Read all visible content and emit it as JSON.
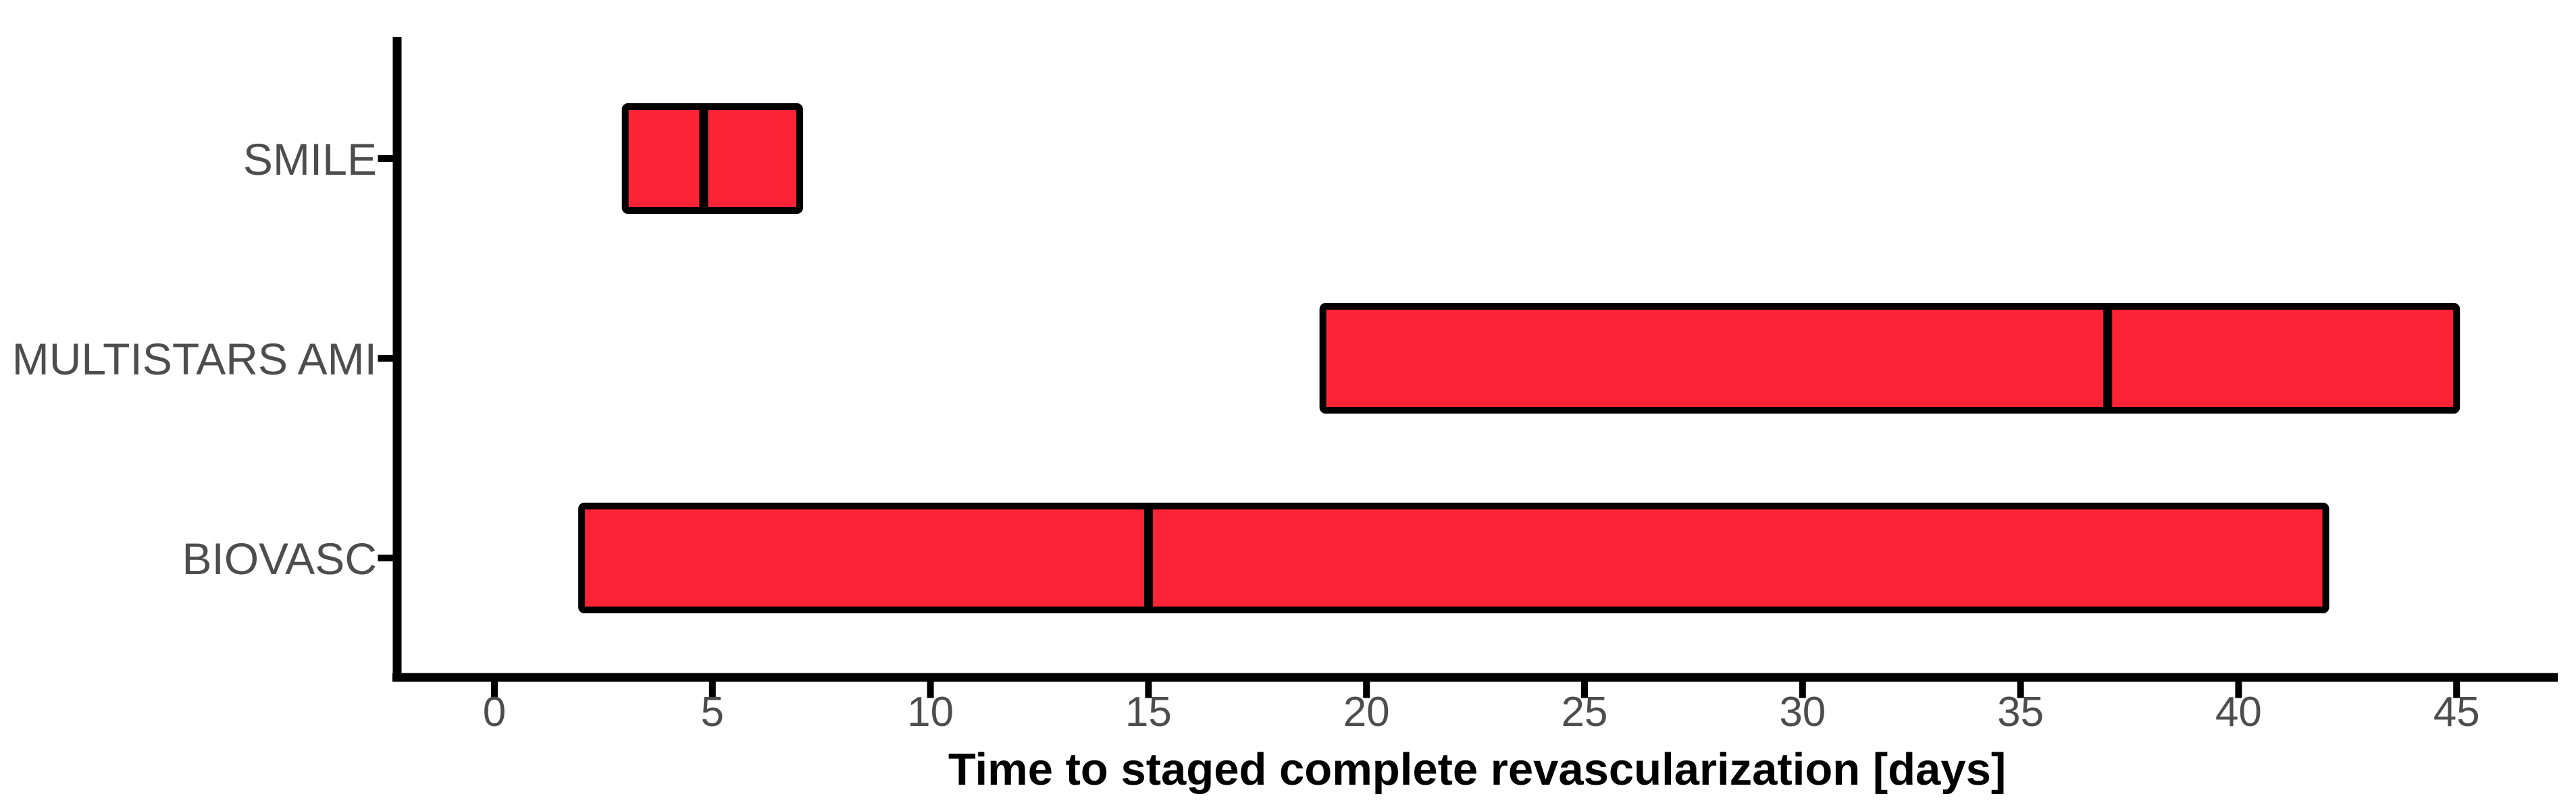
{
  "chart_data": {
    "type": "bar",
    "subtype": "horizontal-range-boxbar",
    "title": "",
    "xlabel": "Time to staged complete revascularization [days]",
    "ylabel": "",
    "unit": "days",
    "categories": [
      "SMILE",
      "MULTISTARS AMI",
      "BIOVASC"
    ],
    "series": [
      {
        "name": "SMILE",
        "start": 3,
        "median": 4.8,
        "end": 7
      },
      {
        "name": "MULTISTARS AMI",
        "start": 19,
        "median": 37,
        "end": 45
      },
      {
        "name": "BIOVASC",
        "start": 2,
        "median": 15,
        "end": 42
      }
    ],
    "x_ticks": [
      0,
      5,
      10,
      15,
      20,
      25,
      30,
      35,
      40,
      45
    ],
    "xlim": [
      -2.25,
      47.3
    ],
    "grid": false,
    "legend": false,
    "colors": {
      "bar_fill": "#FC2336",
      "bar_border": "#000000",
      "median_line": "#000000",
      "axis_line": "#000000",
      "tick_label": "#4D4D4D",
      "category_label": "#4D4D4D",
      "axis_title": "#000000",
      "background": "#FFFFFF"
    }
  }
}
